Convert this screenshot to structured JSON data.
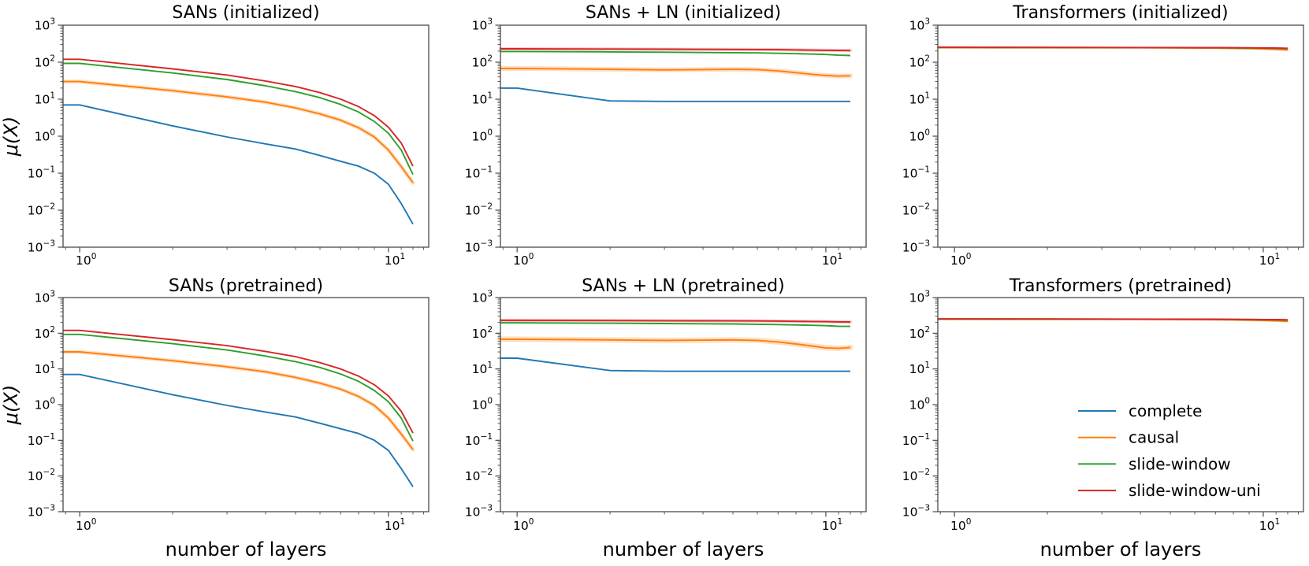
{
  "figure": {
    "ylabel": "μ(X)",
    "xlabel": "number of layers",
    "background": "#ffffff",
    "axis_color": "#4a4a4a",
    "text_color": "#000000"
  },
  "colors": {
    "complete": "#1f77b4",
    "causal": "#ff7f0e",
    "slide-window": "#2ca02c",
    "slide-window-uni": "#d62728"
  },
  "chart_data": [
    {
      "id": "sans-initialized",
      "type": "line",
      "title": "SANs (initialized)",
      "ylabel": "μ(X)",
      "xlabel": null,
      "xscale": "log",
      "yscale": "log",
      "xlim": [
        0.883,
        13.5
      ],
      "ylim": [
        0.001,
        1000
      ],
      "xticks": [
        1,
        10
      ],
      "yticks": [
        1000,
        100,
        10,
        1,
        0.1,
        0.01,
        0.001
      ],
      "grid": false,
      "x": [
        1,
        2,
        3,
        4,
        5,
        6,
        7,
        8,
        9,
        10,
        11,
        12
      ],
      "series": [
        {
          "name": "complete",
          "color": "#1f77b4",
          "band": 0,
          "values": [
            7.0,
            1.9,
            0.95,
            0.62,
            0.45,
            0.3,
            0.21,
            0.155,
            0.1,
            0.05,
            0.015,
            0.0042
          ]
        },
        {
          "name": "causal",
          "color": "#ff7f0e",
          "band": 5,
          "values": [
            30,
            17,
            11.5,
            8.3,
            5.8,
            4.0,
            2.7,
            1.7,
            0.95,
            0.42,
            0.15,
            0.055
          ]
        },
        {
          "name": "slide-window",
          "color": "#2ca02c",
          "band": 0,
          "values": [
            93,
            51,
            34,
            23,
            16,
            11,
            7.2,
            4.5,
            2.5,
            1.2,
            0.42,
            0.092
          ]
        },
        {
          "name": "slide-window-uni",
          "color": "#d62728",
          "band": 0,
          "values": [
            120,
            66,
            45,
            31,
            22,
            15,
            10,
            6.3,
            3.6,
            1.75,
            0.65,
            0.155
          ]
        }
      ],
      "legend": null
    },
    {
      "id": "sans-ln-initialized",
      "type": "line",
      "title": "SANs + LN (initialized)",
      "ylabel": null,
      "xlabel": null,
      "xscale": "log",
      "yscale": "log",
      "xlim": [
        0.883,
        13.5
      ],
      "ylim": [
        0.001,
        1000
      ],
      "xticks": [
        1,
        10
      ],
      "yticks": [
        1000,
        100,
        10,
        1,
        0.1,
        0.01,
        0.001
      ],
      "grid": false,
      "x": [
        1,
        2,
        3,
        4,
        5,
        6,
        7,
        8,
        9,
        10,
        11,
        12
      ],
      "series": [
        {
          "name": "complete",
          "color": "#1f77b4",
          "band": 0,
          "values": [
            20,
            9.0,
            8.7,
            8.7,
            8.7,
            8.7,
            8.7,
            8.7,
            8.7,
            8.7,
            8.7,
            8.7
          ]
        },
        {
          "name": "causal",
          "color": "#ff7f0e",
          "band": 6,
          "values": [
            68,
            64,
            62,
            63,
            64,
            63,
            58,
            52,
            47,
            44,
            42,
            43
          ]
        },
        {
          "name": "slide-window",
          "color": "#2ca02c",
          "band": 0,
          "values": [
            195,
            190,
            186,
            183,
            181,
            178,
            174,
            170,
            166,
            162,
            155,
            152
          ]
        },
        {
          "name": "slide-window-uni",
          "color": "#d62728",
          "band": 4,
          "values": [
            230,
            227,
            224,
            222,
            221,
            220,
            218,
            215,
            212,
            210,
            207,
            206
          ]
        }
      ],
      "legend": null
    },
    {
      "id": "transformers-initialized",
      "type": "line",
      "title": "Transformers (initialized)",
      "ylabel": null,
      "xlabel": null,
      "xscale": "log",
      "yscale": "log",
      "xlim": [
        0.883,
        13.5
      ],
      "ylim": [
        0.001,
        1000
      ],
      "xticks": [
        1,
        10
      ],
      "yticks": [
        1000,
        100,
        10,
        1,
        0.1,
        0.01,
        0.001
      ],
      "grid": false,
      "x": [
        1,
        2,
        3,
        4,
        5,
        6,
        7,
        8,
        9,
        10,
        11,
        12
      ],
      "series": [
        {
          "name": "complete",
          "color": "#1f77b4",
          "band": 0,
          "values": [
            250,
            249,
            248,
            247,
            246,
            245,
            244,
            243,
            241,
            239,
            237,
            234
          ]
        },
        {
          "name": "causal",
          "color": "#ff7f0e",
          "band": 3,
          "values": [
            249,
            248,
            247,
            246,
            244,
            242,
            240,
            237,
            233,
            228,
            222,
            215
          ]
        },
        {
          "name": "slide-window",
          "color": "#2ca02c",
          "band": 0,
          "values": [
            251,
            250,
            249,
            248,
            247,
            246,
            245,
            243,
            241,
            239,
            236,
            233
          ]
        },
        {
          "name": "slide-window-uni",
          "color": "#d62728",
          "band": 0,
          "values": [
            252,
            251,
            250,
            249,
            249,
            248,
            247,
            246,
            245,
            243,
            241,
            238
          ]
        }
      ],
      "legend": null
    },
    {
      "id": "sans-pretrained",
      "type": "line",
      "title": "SANs (pretrained)",
      "ylabel": "μ(X)",
      "xlabel": "number of layers",
      "xscale": "log",
      "yscale": "log",
      "xlim": [
        0.883,
        13.5
      ],
      "ylim": [
        0.001,
        1000
      ],
      "xticks": [
        1,
        10
      ],
      "yticks": [
        1000,
        100,
        10,
        1,
        0.1,
        0.01,
        0.001
      ],
      "grid": false,
      "x": [
        1,
        2,
        3,
        4,
        5,
        6,
        7,
        8,
        9,
        10,
        11,
        12
      ],
      "series": [
        {
          "name": "complete",
          "color": "#1f77b4",
          "band": 0,
          "values": [
            7.0,
            1.9,
            0.95,
            0.62,
            0.45,
            0.3,
            0.21,
            0.155,
            0.1,
            0.052,
            0.016,
            0.005
          ]
        },
        {
          "name": "causal",
          "color": "#ff7f0e",
          "band": 5,
          "values": [
            30,
            17,
            11.5,
            8.3,
            5.8,
            4.0,
            2.7,
            1.7,
            0.95,
            0.42,
            0.15,
            0.055
          ]
        },
        {
          "name": "slide-window",
          "color": "#2ca02c",
          "band": 0,
          "values": [
            93,
            51,
            34,
            23,
            16,
            11,
            7.2,
            4.5,
            2.5,
            1.2,
            0.42,
            0.095
          ]
        },
        {
          "name": "slide-window-uni",
          "color": "#d62728",
          "band": 0,
          "values": [
            120,
            66,
            45,
            31,
            22,
            15,
            10,
            6.3,
            3.6,
            1.75,
            0.65,
            0.16
          ]
        }
      ],
      "legend": null
    },
    {
      "id": "sans-ln-pretrained",
      "type": "line",
      "title": "SANs + LN (pretrained)",
      "ylabel": null,
      "xlabel": "number of layers",
      "xscale": "log",
      "yscale": "log",
      "xlim": [
        0.883,
        13.5
      ],
      "ylim": [
        0.001,
        1000
      ],
      "xticks": [
        1,
        10
      ],
      "yticks": [
        1000,
        100,
        10,
        1,
        0.1,
        0.01,
        0.001
      ],
      "grid": false,
      "x": [
        1,
        2,
        3,
        4,
        5,
        6,
        7,
        8,
        9,
        10,
        11,
        12
      ],
      "series": [
        {
          "name": "complete",
          "color": "#1f77b4",
          "band": 0,
          "values": [
            20,
            9.0,
            8.6,
            8.6,
            8.6,
            8.6,
            8.6,
            8.6,
            8.6,
            8.6,
            8.6,
            8.6
          ]
        },
        {
          "name": "causal",
          "color": "#ff7f0e",
          "band": 7,
          "values": [
            68,
            65,
            63,
            64,
            65,
            63,
            57,
            50,
            44,
            39,
            38,
            40
          ]
        },
        {
          "name": "slide-window",
          "color": "#2ca02c",
          "band": 0,
          "values": [
            196,
            191,
            187,
            184,
            182,
            179,
            175,
            171,
            167,
            163,
            157,
            156
          ]
        },
        {
          "name": "slide-window-uni",
          "color": "#d62728",
          "band": 4,
          "values": [
            230,
            227,
            225,
            223,
            222,
            221,
            219,
            216,
            213,
            211,
            208,
            207
          ]
        }
      ],
      "legend": null
    },
    {
      "id": "transformers-pretrained",
      "type": "line",
      "title": "Transformers (pretrained)",
      "ylabel": null,
      "xlabel": "number of layers",
      "xscale": "log",
      "yscale": "log",
      "xlim": [
        0.883,
        13.5
      ],
      "ylim": [
        0.001,
        1000
      ],
      "xticks": [
        1,
        10
      ],
      "yticks": [
        1000,
        100,
        10,
        1,
        0.1,
        0.01,
        0.001
      ],
      "grid": false,
      "x": [
        1,
        2,
        3,
        4,
        5,
        6,
        7,
        8,
        9,
        10,
        11,
        12
      ],
      "series": [
        {
          "name": "complete",
          "color": "#1f77b4",
          "band": 0,
          "values": [
            250,
            249,
            248,
            247,
            246,
            245,
            244,
            243,
            241,
            239,
            237,
            234
          ]
        },
        {
          "name": "causal",
          "color": "#ff7f0e",
          "band": 3,
          "values": [
            249,
            248,
            247,
            246,
            244,
            242,
            240,
            237,
            233,
            228,
            222,
            216
          ]
        },
        {
          "name": "slide-window",
          "color": "#2ca02c",
          "band": 0,
          "values": [
            251,
            250,
            249,
            248,
            247,
            246,
            245,
            243,
            241,
            239,
            236,
            233
          ]
        },
        {
          "name": "slide-window-uni",
          "color": "#d62728",
          "band": 0,
          "values": [
            252,
            251,
            250,
            249,
            249,
            248,
            247,
            246,
            245,
            243,
            241,
            239
          ]
        }
      ],
      "legend": {
        "position": "lower-right",
        "entries": [
          {
            "label": "complete",
            "color": "#1f77b4"
          },
          {
            "label": "causal",
            "color": "#ff7f0e"
          },
          {
            "label": "slide-window",
            "color": "#2ca02c"
          },
          {
            "label": "slide-window-uni",
            "color": "#d62728"
          }
        ]
      }
    }
  ]
}
